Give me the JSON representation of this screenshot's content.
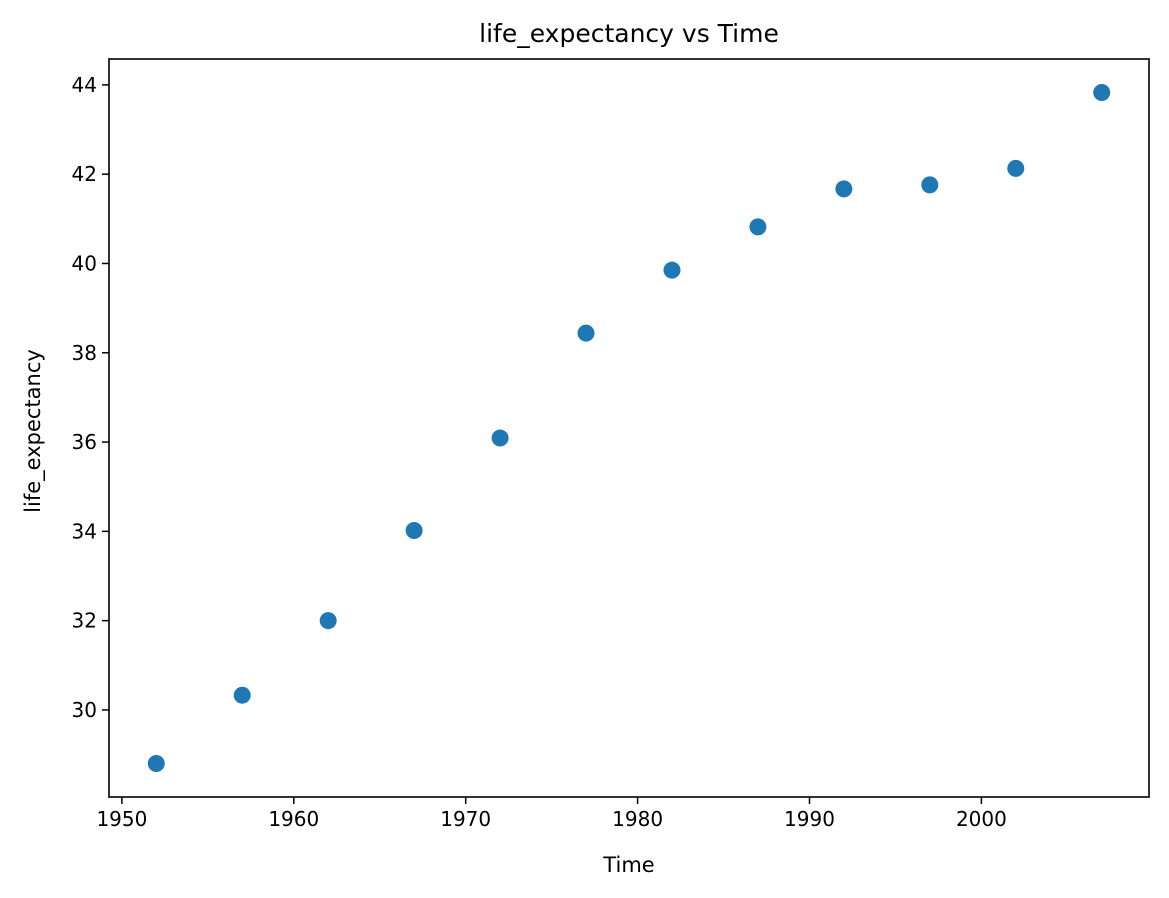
{
  "chart_data": {
    "type": "scatter",
    "title": "life_expectancy vs Time",
    "xlabel": "Time",
    "ylabel": "life_expectancy",
    "x": [
      1952,
      1957,
      1962,
      1967,
      1972,
      1977,
      1982,
      1987,
      1992,
      1997,
      2002,
      2007
    ],
    "y": [
      28.8,
      30.33,
      32.0,
      34.02,
      36.09,
      38.44,
      39.85,
      40.82,
      41.67,
      41.76,
      42.13,
      43.83
    ],
    "xlim": [
      1949.25,
      2009.75
    ],
    "ylim": [
      28.05,
      44.58
    ],
    "xticks": [
      1950,
      1960,
      1970,
      1980,
      1990,
      2000
    ],
    "yticks": [
      30,
      32,
      34,
      36,
      38,
      40,
      42,
      44
    ],
    "marker_color": "#1f77b4",
    "grid": false,
    "legend": false
  }
}
